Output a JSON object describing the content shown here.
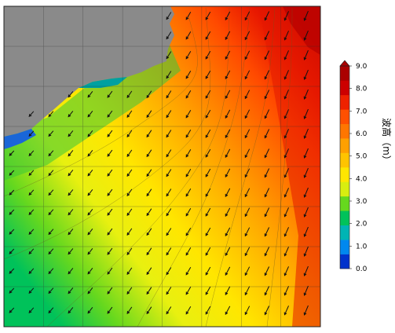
{
  "colorbar": {
    "ticks": [
      "0.0",
      "1.0",
      "2.0",
      "3.0",
      "4.0",
      "5.0",
      "6.0",
      "7.0",
      "8.0",
      "9.0"
    ],
    "unit_label": "波高（m）",
    "palette": [
      "#0033cc",
      "#0088ee",
      "#00b4b4",
      "#00c25a",
      "#66d81e",
      "#d8ee10",
      "#ffe600",
      "#ffc400",
      "#ffa000",
      "#ff7600",
      "#ff5000",
      "#ee2200",
      "#cc0000",
      "#aa0000"
    ]
  },
  "map": {
    "land_color": "#8a8a8a",
    "grid_columns": 8,
    "grid_rows": 8,
    "arrow_direction": "south-west"
  }
}
